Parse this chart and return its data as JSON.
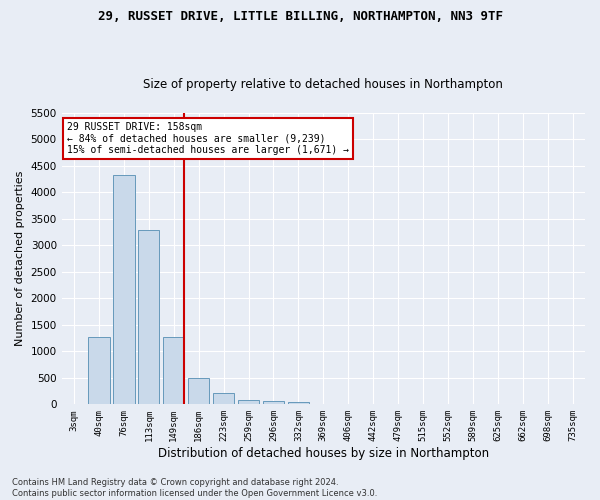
{
  "title_line1": "29, RUSSET DRIVE, LITTLE BILLING, NORTHAMPTON, NN3 9TF",
  "title_line2": "Size of property relative to detached houses in Northampton",
  "xlabel": "Distribution of detached houses by size in Northampton",
  "ylabel": "Number of detached properties",
  "bar_color": "#c9d9ea",
  "bar_edge_color": "#6699bb",
  "background_color": "#e8edf5",
  "grid_color": "#ffffff",
  "categories": [
    "3sqm",
    "40sqm",
    "76sqm",
    "113sqm",
    "149sqm",
    "186sqm",
    "223sqm",
    "259sqm",
    "296sqm",
    "332sqm",
    "369sqm",
    "406sqm",
    "442sqm",
    "479sqm",
    "515sqm",
    "552sqm",
    "589sqm",
    "625sqm",
    "662sqm",
    "698sqm",
    "735sqm"
  ],
  "values": [
    0,
    1270,
    4330,
    3300,
    1280,
    490,
    220,
    80,
    55,
    40,
    0,
    0,
    0,
    0,
    0,
    0,
    0,
    0,
    0,
    0,
    0
  ],
  "vline_x_index": 4,
  "vline_color": "#cc0000",
  "annotation_line1": "29 RUSSET DRIVE: 158sqm",
  "annotation_line2": "← 84% of detached houses are smaller (9,239)",
  "annotation_line3": "15% of semi-detached houses are larger (1,671) →",
  "annotation_box_color": "#ffffff",
  "annotation_box_edge": "#cc0000",
  "footnote": "Contains HM Land Registry data © Crown copyright and database right 2024.\nContains public sector information licensed under the Open Government Licence v3.0.",
  "ylim_max": 5500,
  "yticks": [
    0,
    500,
    1000,
    1500,
    2000,
    2500,
    3000,
    3500,
    4000,
    4500,
    5000,
    5500
  ],
  "title1_fontsize": 9,
  "title2_fontsize": 8.5,
  "ylabel_fontsize": 8,
  "xlabel_fontsize": 8.5
}
